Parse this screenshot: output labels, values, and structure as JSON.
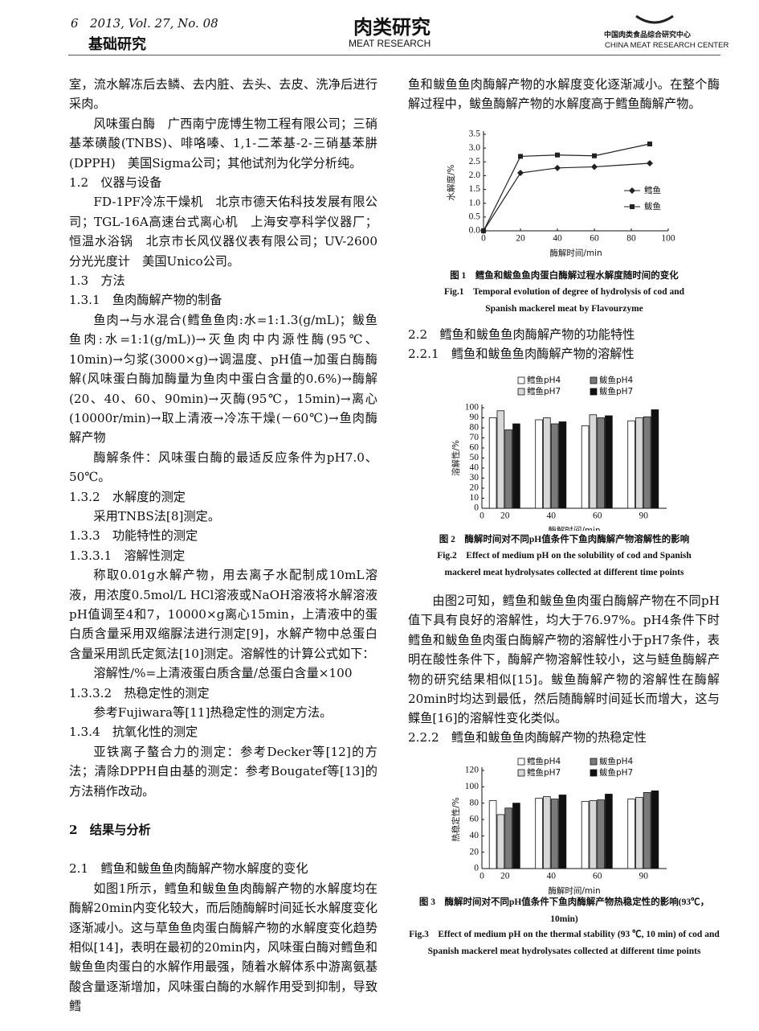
{
  "header": {
    "page": "6",
    "issue": "2013, Vol. 27, No. 08",
    "section": "基础研究",
    "journal": "肉类研究",
    "journal_en": "MEAT RESEARCH",
    "center": "中国肉类食品综合研究中心",
    "center_en": "CHINA MEAT RESEARCH CENTER"
  },
  "left": [
    "室，流水解冻后去鳞、去内脏、去头、去皮、洗净后进行采肉。",
    "风味蛋白酶　广西南宁庞博生物工程有限公司；三硝基苯磺酸(TNBS)、啡咯嗪、1,1-二苯基-2-三硝基苯肼(DPPH)　美国Sigma公司；其他试剂为化学分析纯。",
    "1.2　仪器与设备",
    "FD-1PF冷冻干燥机　北京市德天佑科技发展有限公司；TGL-16A高速台式离心机　上海安亭科学仪器厂；恒温水浴锅　北京市长风仪器仪表有限公司；UV-2600分光光度计　美国Unico公司。",
    "1.3　方法",
    "1.3.1　鱼肉酶解产物的制备",
    "鱼肉→与水混合(鳕鱼鱼肉:水=1:1.3(g/mL)；鲅鱼鱼肉:水=1:1(g/mL))→灭鱼肉中内源性酶(95℃、10min)→匀浆(3000×g)→调温度、pH值→加蛋白酶酶解(风味蛋白酶加酶量为鱼肉中蛋白含量的0.6%)→酶解(20、40、60、90min)→灭酶(95℃，15min)→离心(10000r/min)→取上清液→冷冻干燥(－60℃)→鱼肉酶解产物",
    "酶解条件：风味蛋白酶的最适反应条件为pH7.0、50℃。",
    "1.3.2　水解度的测定",
    "采用TNBS法[8]测定。",
    "1.3.3　功能特性的测定",
    "1.3.3.1　溶解性测定",
    "称取0.01g水解产物，用去离子水配制成10mL溶液，用浓度0.5mol/L HCl溶液或NaOH溶液将水解溶液pH值调至4和7，10000×g离心15min，上清液中的蛋白质含量采用双缩脲法进行测定[9]，水解产物中总蛋白含量采用凯氏定氮法[10]测定。溶解性的计算公式如下：",
    "溶解性/%=上清液蛋白质含量/总蛋白含量×100",
    "1.3.3.2　热稳定性的测定",
    "参考Fujiwara等[11]热稳定性的测定方法。",
    "1.3.4　抗氧化性的测定",
    "亚铁离子螯合力的测定：参考Decker等[12]的方法；清除DPPH自由基的测定：参考Bougatef等[13]的方法稍作改动。",
    "2　结果与分析",
    "2.1　鳕鱼和鲅鱼鱼肉酶解产物水解度的变化",
    "如图1所示，鳕鱼和鲅鱼鱼肉酶解产物的水解度均在酶解20min内变化较大，而后随酶解时间延长水解度变化逐渐减小。这与草鱼鱼肉蛋白酶解产物的水解度变化趋势相似[14]，表明在最初的20min内，风味蛋白酶对鳕鱼和鲅鱼鱼肉蛋白的水解作用最强，随着水解体系中游离氨基酸含量逐渐增加，风味蛋白酶的水解作用受到抑制，导致鳕"
  ],
  "right": [
    "鱼和鲅鱼鱼肉酶解产物的水解度变化逐渐减小。在整个酶解过程中，鲅鱼酶解产物的水解度高于鳕鱼酶解产物。",
    "2.2　鳕鱼和鲅鱼鱼肉酶解产物的功能特性",
    "2.2.1　鳕鱼和鲅鱼鱼肉酶解产物的溶解性",
    "由图2可知，鳕鱼和鲅鱼鱼肉蛋白酶解产物在不同pH值下具有良好的溶解性，均大于76.97%。pH4条件下时鳕鱼和鲅鱼鱼肉蛋白酶解产物的溶解性小于pH7条件，表明在酸性条件下，酶解产物溶解性较小，这与鲢鱼酶解产物的研究结果相似[15]。鲅鱼酶解产物的溶解性在酶解20min时均达到最低，然后随酶解时间延长而增大，这与鲽鱼[16]的溶解性变化类似。",
    "2.2.2　鳕鱼和鲅鱼鱼肉酶解产物的热稳定性"
  ],
  "chart_data": [
    {
      "type": "line",
      "caption": "图 1　鳕鱼和鲅鱼鱼肉蛋白酶解过程水解度随时间的变化",
      "caption_en": "Fig.1　Temporal evolution of degree of hydrolysis of cod and Spanish mackerel meat by Flavourzyme",
      "x_label": "酶解时间/min",
      "y_label": "水解度/%",
      "x": [
        0,
        20,
        40,
        60,
        90
      ],
      "series": [
        {
          "name": "鳕鱼",
          "color": "#222222",
          "marker": "diamond",
          "values": [
            0,
            2.1,
            2.28,
            2.32,
            2.45
          ]
        },
        {
          "name": "鲅鱼",
          "color": "#222222",
          "marker": "square",
          "values": [
            0,
            2.7,
            2.75,
            2.72,
            3.15
          ]
        }
      ],
      "xlim": [
        0,
        100
      ],
      "xticks": [
        0,
        20,
        40,
        60,
        80,
        100
      ],
      "ylim": [
        0,
        3.5
      ],
      "yticks": [
        {
          "value": 0,
          "label": "0.0"
        },
        0.5,
        {
          "value": 1,
          "label": "1.0"
        },
        1.5,
        {
          "value": 2,
          "label": "2.0"
        },
        2.5,
        {
          "value": 3,
          "label": "3.0"
        },
        3.5
      ],
      "legend": "right"
    },
    {
      "type": "bar",
      "caption": "图 2　酶解时间对不同pH值条件下鱼肉酶解产物溶解性的影响",
      "caption_en": "Fig.2　Effect of medium pH on the solubility of cod and Spanish mackerel meat hydrolysates collected at different time points",
      "x_label": "酶解时间/min",
      "y_label": "溶解性/%",
      "x_origin": "0",
      "categories": [
        "20",
        "40",
        "60",
        "90"
      ],
      "series": [
        {
          "name": "鳕鱼pH4",
          "color": "#ffffff",
          "values": [
            90,
            88,
            82,
            87
          ]
        },
        {
          "name": "鳕鱼pH7",
          "color": "#d8d8d8",
          "values": [
            97,
            90,
            93,
            90
          ]
        },
        {
          "name": "鲅鱼pH4",
          "color": "#7a7a7a",
          "values": [
            78,
            84,
            90,
            91
          ]
        },
        {
          "name": "鲅鱼pH7",
          "color": "#111111",
          "values": [
            84,
            86,
            92,
            98
          ]
        }
      ],
      "ylim": [
        0,
        100
      ],
      "yticks": [
        0,
        10,
        20,
        30,
        40,
        50,
        60,
        70,
        80,
        90,
        100
      ],
      "legend": "top"
    },
    {
      "type": "bar",
      "caption": "图 3　酶解时间对不同pH值条件下鱼肉酶解产物热稳定性的影响(93℃，10min)",
      "caption_en": "Fig.3　Effect of medium pH on the thermal stability (93 ℃, 10 min) of cod and Spanish mackerel meat hydrolysates collected at different time points",
      "x_label": "酶解时间/min",
      "y_label": "热稳定性/%",
      "x_origin": "0",
      "categories": [
        "20",
        "40",
        "60",
        "90"
      ],
      "series": [
        {
          "name": "鳕鱼pH4",
          "color": "#ffffff",
          "values": [
            83,
            86,
            82,
            85
          ]
        },
        {
          "name": "鳕鱼pH7",
          "color": "#d8d8d8",
          "values": [
            66,
            88,
            83,
            87
          ]
        },
        {
          "name": "鲅鱼pH4",
          "color": "#7a7a7a",
          "values": [
            74,
            85,
            84,
            93
          ]
        },
        {
          "name": "鲅鱼pH7",
          "color": "#111111",
          "values": [
            80,
            90,
            91,
            95
          ]
        }
      ],
      "ylim": [
        0,
        120
      ],
      "yticks": [
        0,
        20,
        40,
        60,
        80,
        100,
        120
      ],
      "legend": "top"
    }
  ]
}
